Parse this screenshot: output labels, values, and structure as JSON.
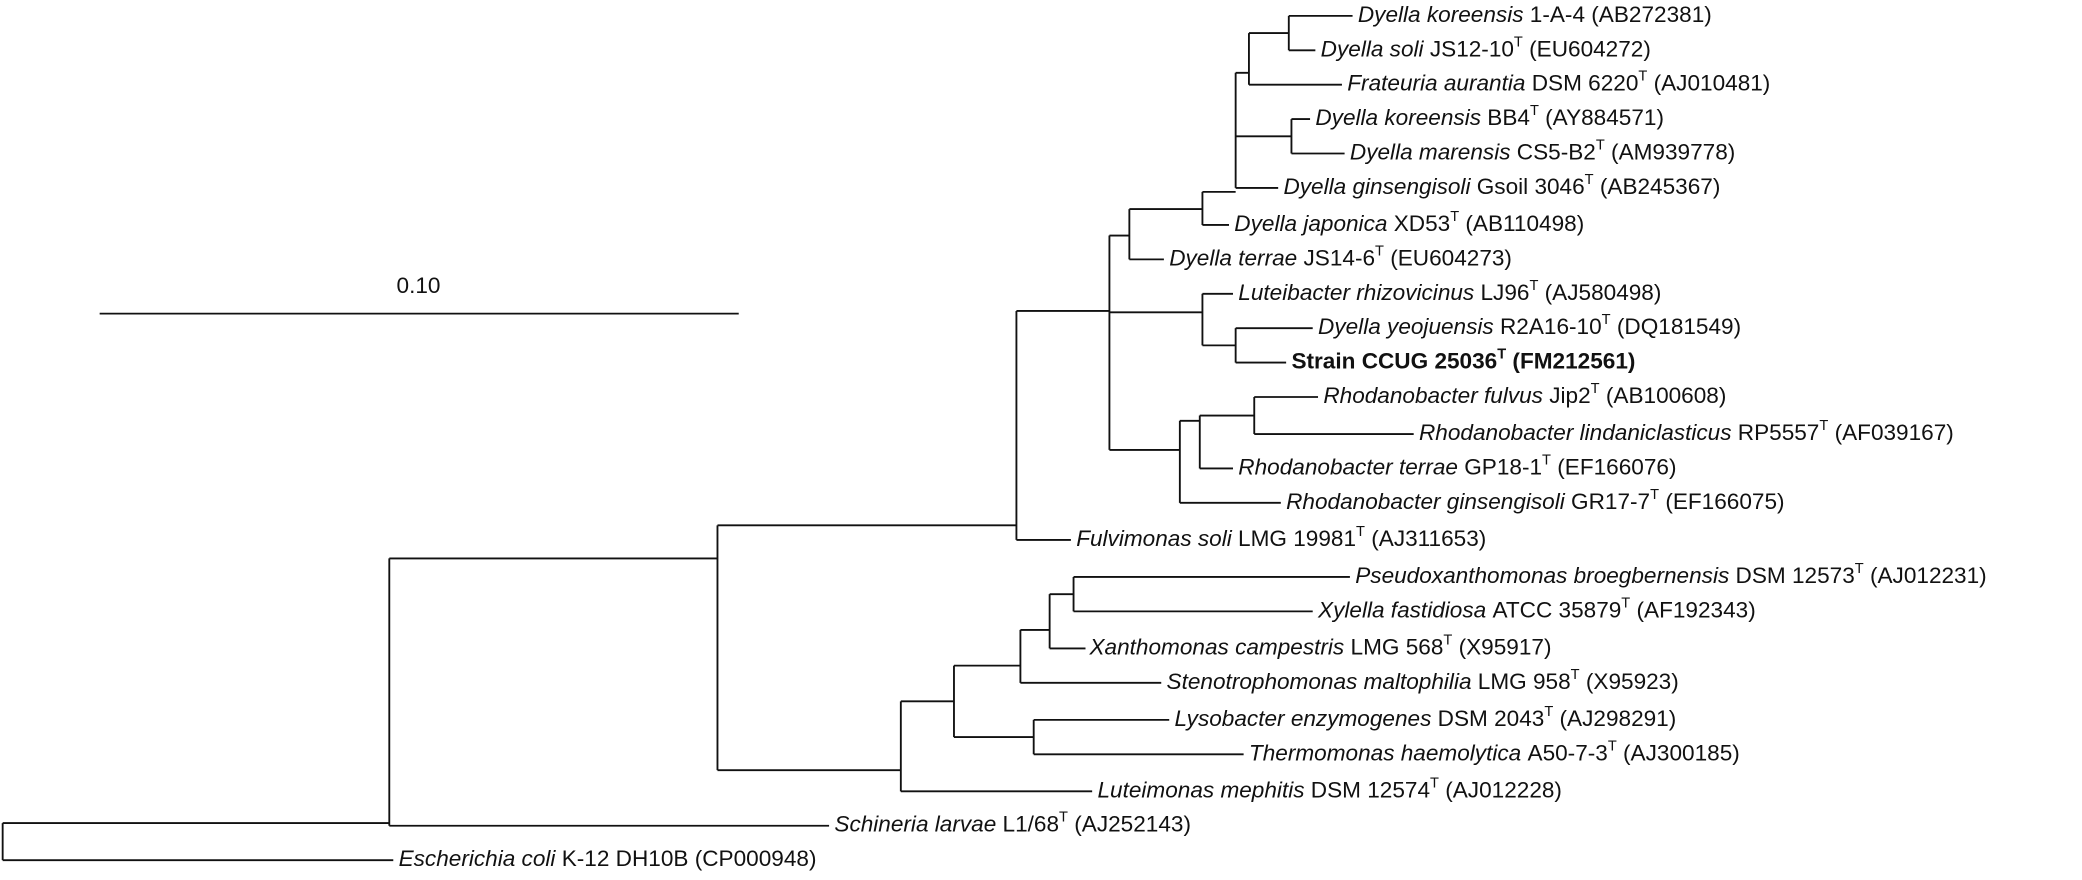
{
  "scale_bar": {
    "label": "0.10"
  },
  "leaves": [
    {
      "species": "Dyella koreensis",
      "strain": "1-A-4",
      "accession": "(AB272381)"
    },
    {
      "species": "Dyella soli",
      "strain": "JS12-10",
      "type_mark": "T",
      "accession": "(EU604272)"
    },
    {
      "species": "Frateuria aurantia",
      "strain": "DSM 6220",
      "type_mark": "T",
      "accession": "(AJ010481)"
    },
    {
      "species": "Dyella koreensis",
      "strain": "BB4",
      "type_mark": "T",
      "accession": "(AY884571)"
    },
    {
      "species": "Dyella marensis",
      "strain": "CS5-B2",
      "type_mark": "T",
      "accession": "(AM939778)"
    },
    {
      "species": "Dyella ginsengisoli",
      "strain": "Gsoil 3046",
      "type_mark": "T",
      "accession": "(AB245367)"
    },
    {
      "species": "Dyella japonica",
      "strain": "XD53",
      "type_mark": "T",
      "accession": "(AB110498)"
    },
    {
      "species": "Dyella terrae",
      "strain": "JS14-6",
      "type_mark": "T",
      "accession": "(EU604273)"
    },
    {
      "species": "Luteibacter rhizovicinus",
      "strain": "LJ96",
      "type_mark": "T",
      "accession": "(AJ580498)"
    },
    {
      "species": "Dyella yeojuensis",
      "strain": "R2A16-10",
      "type_mark": "T",
      "accession": "(DQ181549)"
    },
    {
      "strain": "Strain CCUG 25036",
      "type_mark": "T",
      "accession": "(FM212561)",
      "bold": true
    },
    {
      "species": "Rhodanobacter fulvus",
      "strain": "Jip2",
      "type_mark": "T",
      "accession": "(AB100608)"
    },
    {
      "species": "Rhodanobacter lindaniclasticus",
      "strain": "RP5557",
      "type_mark": "T",
      "accession": "(AF039167)"
    },
    {
      "species": "Rhodanobacter terrae",
      "strain": "GP18-1",
      "type_mark": "T",
      "accession": "(EF166076)"
    },
    {
      "species": "Rhodanobacter ginsengisoli",
      "strain": "GR17-7",
      "type_mark": "T",
      "accession": "(EF166075)"
    },
    {
      "species": "Fulvimonas soli",
      "strain": "LMG 19981",
      "type_mark": "T",
      "accession": "(AJ311653)"
    },
    {
      "species": "Pseudoxanthomonas broegbernensis",
      "strain": "DSM 12573",
      "type_mark": "T",
      "accession": "(AJ012231)"
    },
    {
      "species": "Xylella fastidiosa",
      "strain": "ATCC 35879",
      "type_mark": "T",
      "accession": "(AF192343)"
    },
    {
      "species": "Xanthomonas campestris",
      "strain": "LMG 568",
      "type_mark": "T",
      "accession": "(X95917)"
    },
    {
      "species": "Stenotrophomonas maltophilia",
      "strain": "LMG 958",
      "type_mark": "T",
      "accession": "(X95923)"
    },
    {
      "species": "Lysobacter enzymogenes",
      "strain": "DSM 2043",
      "type_mark": "T",
      "accession": "(AJ298291)"
    },
    {
      "species": "Thermomonas haemolytica",
      "strain": "A50-7-3",
      "type_mark": "T",
      "accession": "(AJ300185)"
    },
    {
      "species": "Luteimonas mephitis",
      "strain": "DSM 12574",
      "type_mark": "T",
      "accession": "(AJ012228)"
    },
    {
      "species": "Schineria larvae",
      "strain": "L1/68",
      "type_mark": "T",
      "accession": "(AJ252143)"
    },
    {
      "species": "Escherichia coli",
      "strain": "K-12 DH10B",
      "accession": "(CP000948)"
    }
  ]
}
